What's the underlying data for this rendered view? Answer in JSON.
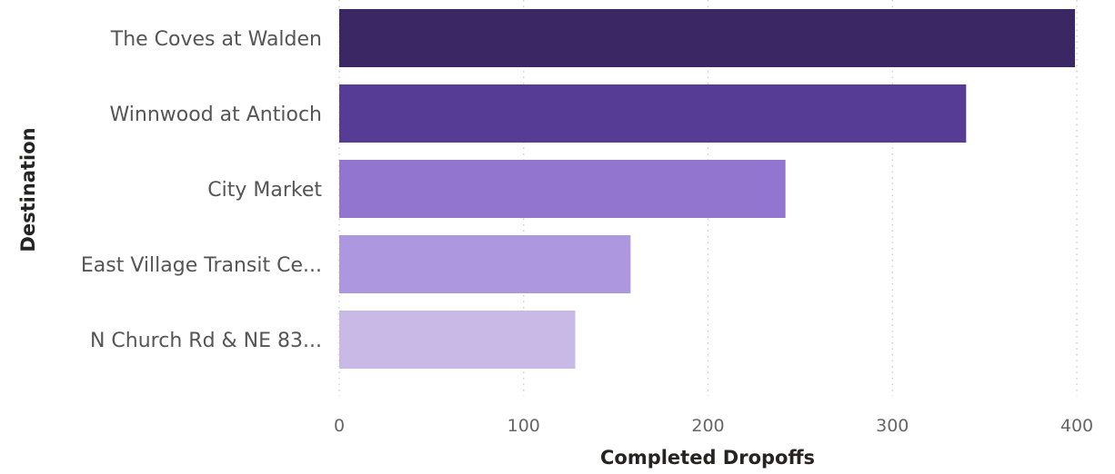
{
  "chart_data": {
    "type": "bar",
    "orientation": "horizontal",
    "categories": [
      "The Coves at Walden",
      "Winnwood at Antioch",
      "City Market",
      "East Village Transit Ce...",
      "N Church Rd & NE 83..."
    ],
    "values": [
      399,
      340,
      242,
      158,
      128
    ],
    "colors": [
      "#3b2764",
      "#573c95",
      "#9175cf",
      "#ad97de",
      "#c8b9e7"
    ],
    "xlabel": "Completed Dropoffs",
    "ylabel": "Destination",
    "xlim": [
      0,
      400
    ],
    "xticks": [
      0,
      100,
      200,
      300,
      400
    ],
    "grid": true,
    "legend": "none"
  }
}
